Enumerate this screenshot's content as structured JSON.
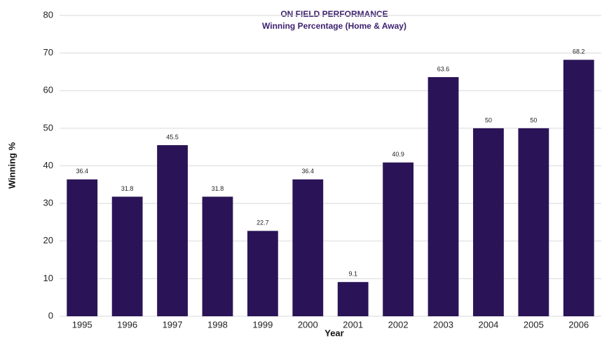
{
  "chart_data": {
    "type": "bar",
    "title": "ON FIELD PERFORMANCE",
    "subtitle": "Winning Percentage (Home & Away)",
    "x_label": "Year",
    "y_label": "Winning %",
    "categories": [
      "1995",
      "1996",
      "1997",
      "1998",
      "1999",
      "2000",
      "2001",
      "2002",
      "2003",
      "2004",
      "2005",
      "2006"
    ],
    "values": [
      36.4,
      31.8,
      45.5,
      31.8,
      22.7,
      36.4,
      9.1,
      40.9,
      63.6,
      50,
      50,
      68.2
    ],
    "color": "#2a1457",
    "ylim": [
      0,
      80
    ],
    "yticks": [
      0,
      10,
      20,
      30,
      40,
      50,
      60,
      70,
      80
    ],
    "grid": true
  }
}
